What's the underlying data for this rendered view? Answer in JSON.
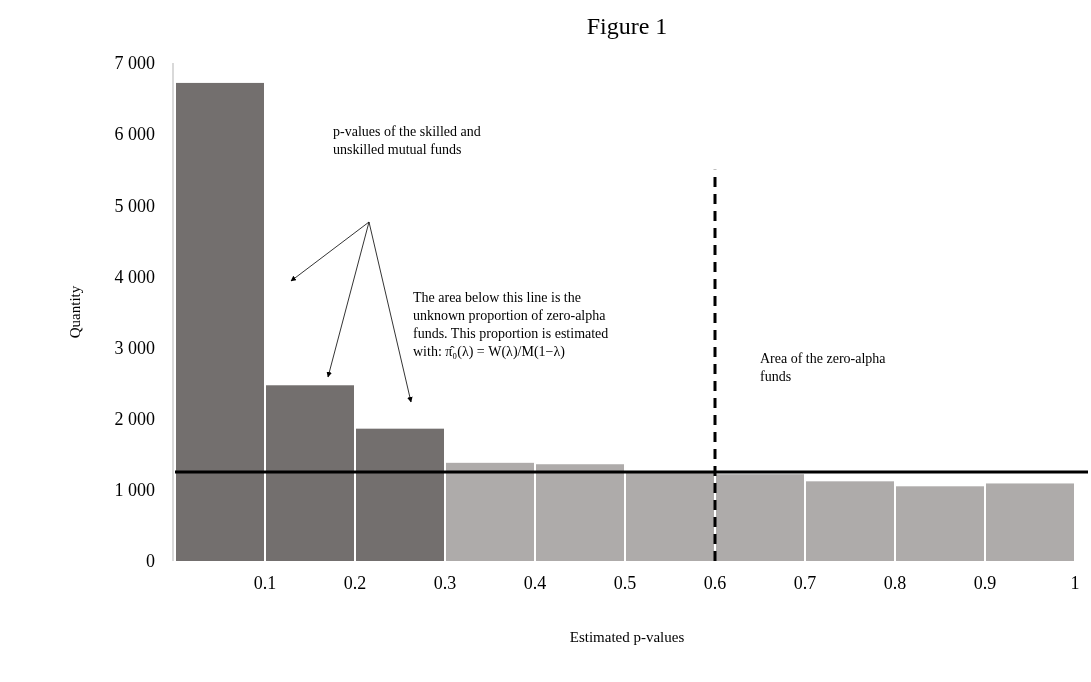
{
  "chart_data": {
    "type": "histogram",
    "title": "Figure 1",
    "xlabel": "Estimated p-values",
    "ylabel": "Quantity",
    "bins": [
      0,
      0.1,
      0.2,
      0.3,
      0.4,
      0.5,
      0.6,
      0.7,
      0.8,
      0.9,
      1
    ],
    "values": [
      6720,
      2470,
      1860,
      1380,
      1360,
      1240,
      1220,
      1120,
      1050,
      1090
    ],
    "colors": [
      "#736f6e",
      "#736f6e",
      "#736f6e",
      "#aeabaa",
      "#aeabaa",
      "#aeabaa",
      "#aeabaa",
      "#aeabaa",
      "#aeabaa",
      "#aeabaa"
    ],
    "xlim": [
      0,
      1
    ],
    "xticks": [
      0.1,
      0.2,
      0.3,
      0.4,
      0.5,
      0.6,
      0.7,
      0.8,
      0.9,
      1
    ],
    "ylim": [
      0,
      7000
    ],
    "yticks": [
      {
        "value": 0,
        "label": "0"
      },
      {
        "value": 1000,
        "label": "1 000"
      },
      {
        "value": 2000,
        "label": "2 000"
      },
      {
        "value": 3000,
        "label": "3 000"
      },
      {
        "value": 4000,
        "label": "4 000"
      },
      {
        "value": 5000,
        "label": "5 000"
      },
      {
        "value": 6000,
        "label": "6 000"
      },
      {
        "value": 7000,
        "label": "7 000"
      }
    ],
    "ref_lines": [
      {
        "axis": "y",
        "value": 1250,
        "color": "#000000",
        "line_style": "solid"
      },
      {
        "axis": "x",
        "value": 0.6,
        "color": "#000000",
        "line_style": "dashed"
      }
    ],
    "annotations": [
      "p-values of the skilled and unskilled mutual funds",
      "The area below this line is the unknown proportion of zero-alpha funds. This proportion is estimated with: π̂₀(λ) = W(λ)/M(1−λ)",
      "Area of the zero-alpha funds"
    ]
  }
}
